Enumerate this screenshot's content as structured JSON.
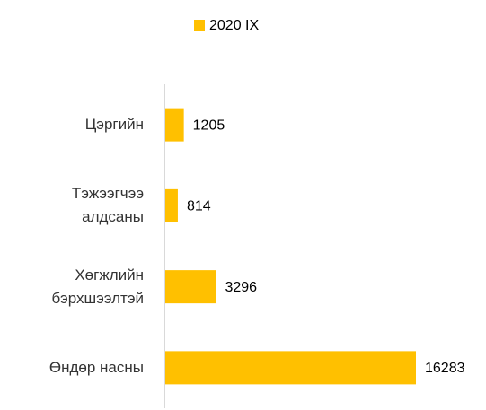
{
  "chart_data": {
    "type": "bar",
    "orientation": "horizontal",
    "categories": [
      "Цэргийн",
      "Тэжээгчээ алдсаны",
      "Хөгжлийн бэрхшээлтэй",
      "Өндөр насны"
    ],
    "series": [
      {
        "name": "2020 IX",
        "color": "#FFC000",
        "values": [
          1205,
          814,
          3296,
          16283
        ]
      }
    ],
    "legend": "top"
  }
}
